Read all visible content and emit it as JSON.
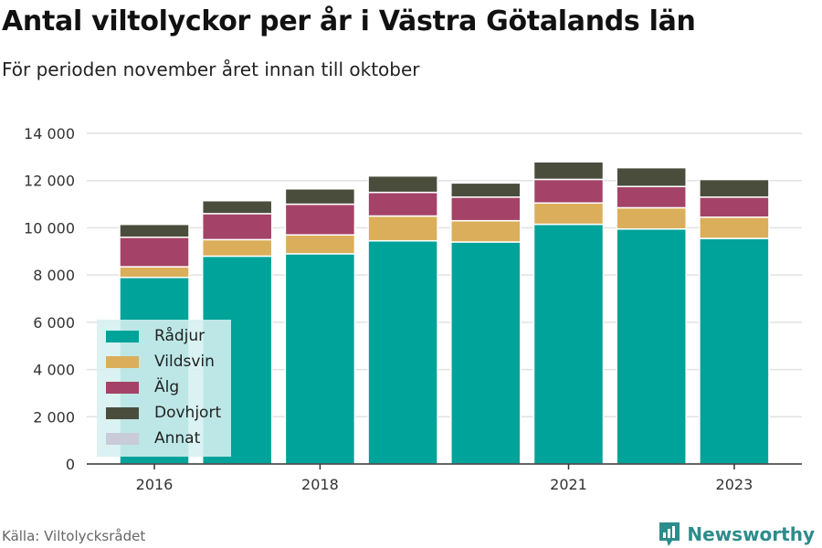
{
  "title": "Antal viltolyckor per år i Västra Götalands län",
  "subtitle": "För perioden november året innan till oktober",
  "source": "Källa: Viltolycksrådet",
  "brand": "Newsworthy",
  "chart_data": {
    "type": "bar",
    "stacked": true,
    "categories": [
      2016,
      2017,
      2018,
      2019,
      2020,
      2021,
      2022,
      2023
    ],
    "x_tick_labels": [
      "2016",
      "2018",
      "2021",
      "2023"
    ],
    "x_tick_values": [
      2016,
      2018,
      2021,
      2023
    ],
    "ylim": [
      0,
      14000
    ],
    "y_ticks": [
      0,
      2000,
      4000,
      6000,
      8000,
      10000,
      12000,
      14000
    ],
    "y_tick_labels": [
      "0",
      "2 000",
      "4 000",
      "6 000",
      "8 000",
      "10 000",
      "12 000",
      "14 000"
    ],
    "grid": true,
    "legend_position": "bottom-left",
    "series": [
      {
        "name": "Rådjur",
        "color": "#00a399",
        "values": [
          7900,
          8800,
          8900,
          9450,
          9400,
          10150,
          9950,
          9550
        ]
      },
      {
        "name": "Vildsvin",
        "color": "#dbae5b",
        "values": [
          450,
          700,
          800,
          1050,
          900,
          900,
          900,
          900
        ]
      },
      {
        "name": "Älg",
        "color": "#a44367",
        "values": [
          1250,
          1100,
          1300,
          1000,
          1000,
          1000,
          900,
          850
        ]
      },
      {
        "name": "Dovhjort",
        "color": "#4b4d3c",
        "values": [
          550,
          550,
          650,
          700,
          600,
          750,
          800,
          750
        ]
      },
      {
        "name": "Annat",
        "color": "#c9cbd9",
        "values": [
          50,
          50,
          50,
          50,
          50,
          50,
          50,
          50
        ]
      }
    ]
  }
}
